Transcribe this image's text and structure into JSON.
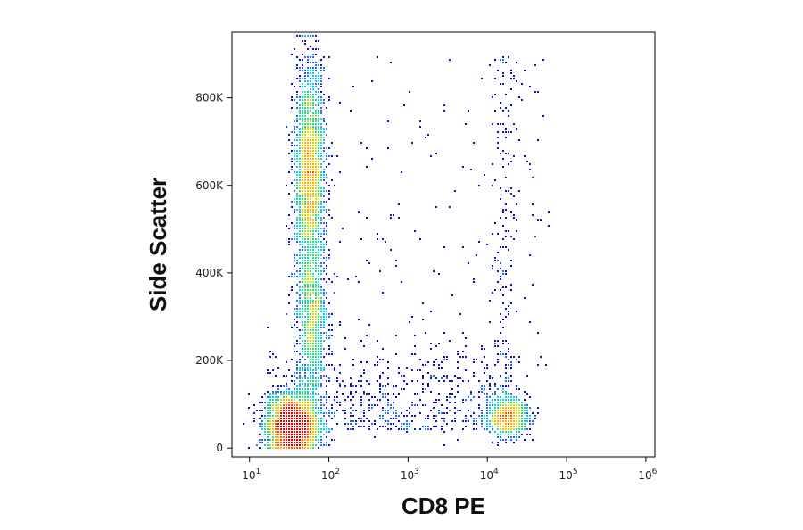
{
  "chart_data": {
    "type": "scatter",
    "title": "",
    "xlabel": "CD8 PE",
    "ylabel": "Side Scatter",
    "x_scale": "log",
    "xlim": [
      6,
      1300000
    ],
    "ylim": [
      -20000,
      950000
    ],
    "x_ticks": [
      {
        "value": 10,
        "base": "10",
        "exp": "1"
      },
      {
        "value": 100,
        "base": "10",
        "exp": "2"
      },
      {
        "value": 1000,
        "base": "10",
        "exp": "3"
      },
      {
        "value": 10000,
        "base": "10",
        "exp": "4"
      },
      {
        "value": 100000,
        "base": "10",
        "exp": "5"
      },
      {
        "value": 1000000,
        "base": "10",
        "exp": "6"
      }
    ],
    "y_ticks": [
      {
        "value": 0,
        "label": "0"
      },
      {
        "value": 200000,
        "label": "200K"
      },
      {
        "value": 400000,
        "label": "400K"
      },
      {
        "value": 600000,
        "label": "600K"
      },
      {
        "value": 800000,
        "label": "800K"
      }
    ],
    "grid": false,
    "legend": "none",
    "colormap": [
      "#1010c0",
      "#2a6cf0",
      "#18c8e8",
      "#30d890",
      "#c8e020",
      "#ffb000",
      "#ff5000",
      "#e00000"
    ],
    "populations": [
      {
        "center_x": 35,
        "center_y": 50000,
        "spread_log_x": 0.16,
        "spread_y": 35000,
        "count": 2600
      },
      {
        "center_x": 58,
        "center_y": 620000,
        "spread_log_x": 0.1,
        "spread_y": 130000,
        "count": 2200
      },
      {
        "center_x": 62,
        "center_y": 280000,
        "spread_log_x": 0.1,
        "spread_y": 90000,
        "count": 900
      },
      {
        "center_x": 18000,
        "center_y": 70000,
        "spread_log_x": 0.14,
        "spread_y": 22000,
        "count": 650
      }
    ],
    "overflow_y": 940000
  }
}
